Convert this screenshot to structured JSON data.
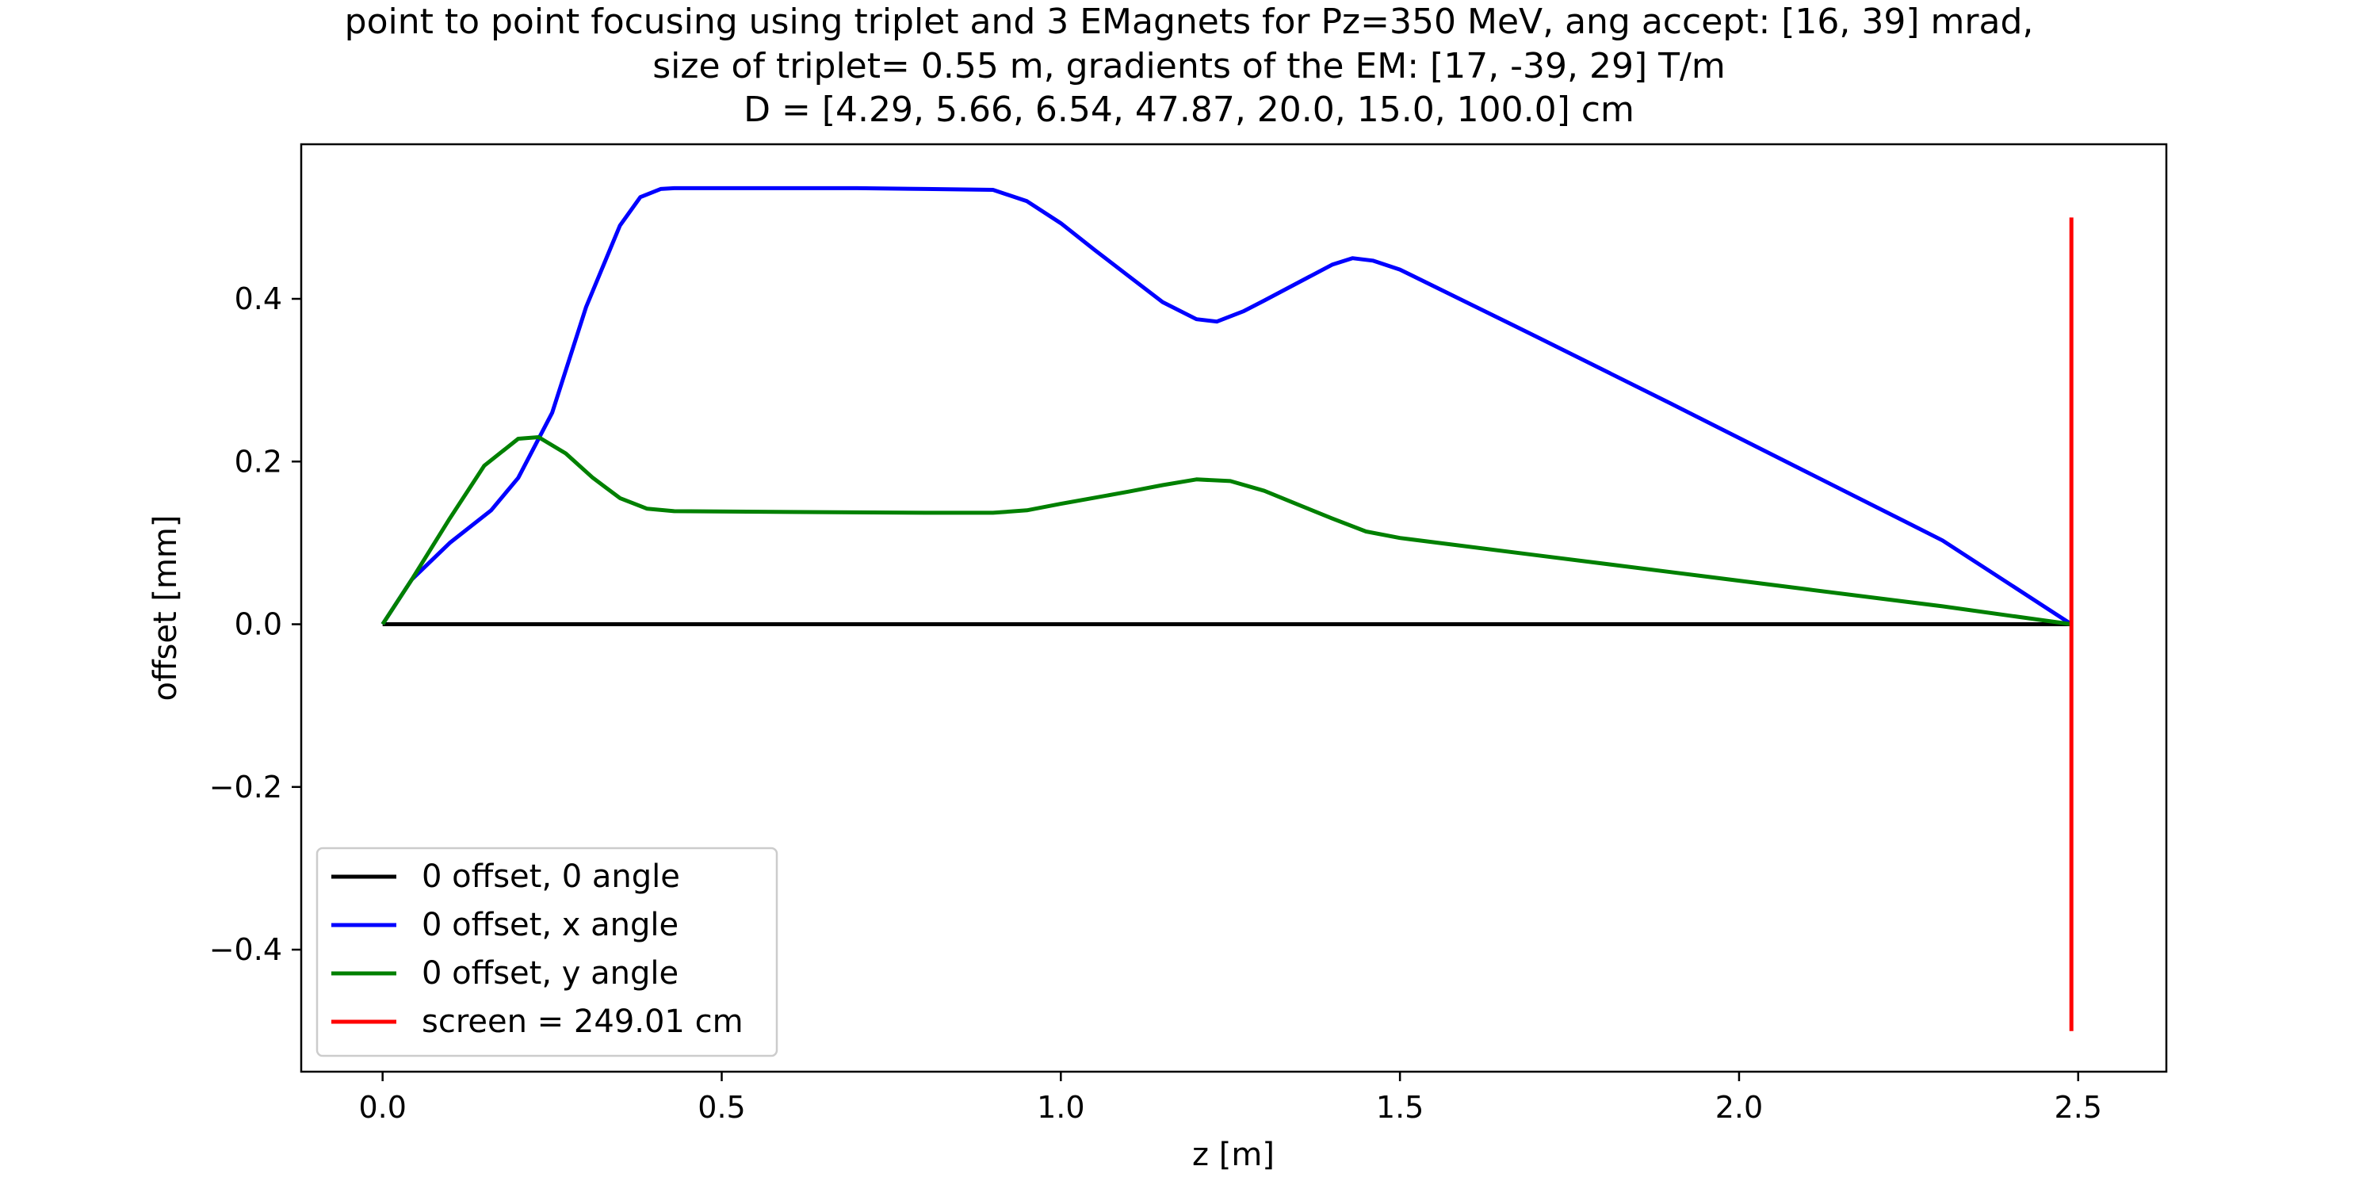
{
  "chart_data": {
    "type": "line",
    "title_lines": [
      "point to point focusing using triplet and 3 EMagnets for Pz=350 MeV, ang accept: [16, 39] mrad,",
      "size of triplet= 0.55 m, gradients of the EM: [17, -39, 29] T/m",
      "D = [4.29, 5.66, 6.54, 47.87, 20.0, 15.0, 100.0] cm"
    ],
    "xlabel": "z [m]",
    "ylabel": "offset [mm]",
    "xlim": [
      -0.12,
      2.63
    ],
    "ylim": [
      -0.55,
      0.59
    ],
    "xticks": [
      0.0,
      0.5,
      1.0,
      1.5,
      2.0,
      2.5
    ],
    "xtick_labels": [
      "0.0",
      "0.5",
      "1.0",
      "1.5",
      "2.0",
      "2.5"
    ],
    "yticks": [
      -0.4,
      -0.2,
      0.0,
      0.2,
      0.4
    ],
    "ytick_labels": [
      "−0.4",
      "−0.2",
      "0.0",
      "0.2",
      "0.4"
    ],
    "grid": false,
    "legend_position": "lower-left",
    "series": [
      {
        "name": "0 offset, 0 angle",
        "color": "#000000",
        "x": [
          0.0,
          2.49
        ],
        "y": [
          0.0,
          0.0
        ]
      },
      {
        "name": "0 offset, x angle",
        "color": "#0000ff",
        "x": [
          0.0,
          0.043,
          0.099,
          0.16,
          0.2,
          0.25,
          0.3,
          0.35,
          0.38,
          0.41,
          0.43,
          0.5,
          0.6,
          0.7,
          0.8,
          0.9,
          0.95,
          1.0,
          1.05,
          1.1,
          1.15,
          1.2,
          1.23,
          1.27,
          1.3,
          1.35,
          1.4,
          1.43,
          1.46,
          1.5,
          1.7,
          1.9,
          2.1,
          2.3,
          2.49
        ],
        "y": [
          0.0,
          0.055,
          0.1,
          0.14,
          0.18,
          0.26,
          0.39,
          0.49,
          0.525,
          0.535,
          0.536,
          0.536,
          0.536,
          0.536,
          0.535,
          0.534,
          0.52,
          0.493,
          0.46,
          0.428,
          0.396,
          0.375,
          0.372,
          0.385,
          0.398,
          0.42,
          0.442,
          0.45,
          0.447,
          0.436,
          0.354,
          0.271,
          0.187,
          0.103,
          0.0
        ]
      },
      {
        "name": "0 offset, y angle",
        "color": "#008000",
        "x": [
          0.0,
          0.043,
          0.099,
          0.15,
          0.2,
          0.23,
          0.27,
          0.31,
          0.35,
          0.39,
          0.43,
          0.6,
          0.8,
          0.9,
          0.95,
          1.0,
          1.1,
          1.15,
          1.2,
          1.25,
          1.3,
          1.35,
          1.4,
          1.45,
          1.5,
          1.7,
          1.9,
          2.1,
          2.3,
          2.49
        ],
        "y": [
          0.0,
          0.055,
          0.13,
          0.195,
          0.228,
          0.23,
          0.21,
          0.18,
          0.155,
          0.142,
          0.139,
          0.138,
          0.137,
          0.137,
          0.14,
          0.148,
          0.163,
          0.171,
          0.178,
          0.176,
          0.164,
          0.147,
          0.13,
          0.114,
          0.106,
          0.085,
          0.064,
          0.043,
          0.022,
          0.0
        ]
      },
      {
        "name": "screen = 249.01 cm",
        "color": "#ff0000",
        "x": [
          2.49,
          2.49
        ],
        "y": [
          -0.5,
          0.5
        ]
      }
    ]
  }
}
